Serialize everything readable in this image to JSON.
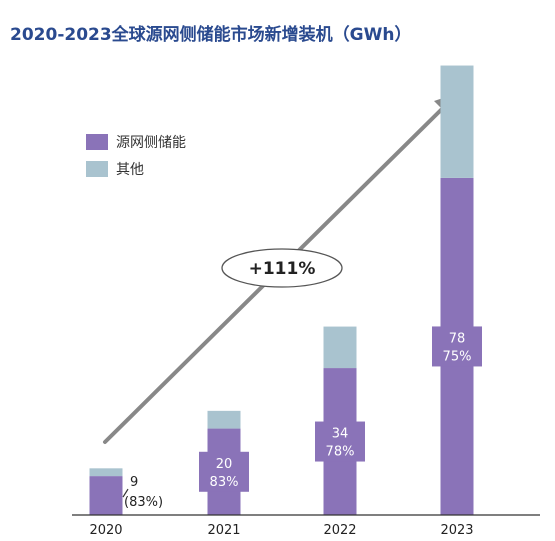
{
  "chart_data": {
    "type": "bar",
    "stacked": true,
    "title": "2020-2023全球源网侧储能市场新增装机（GWh）",
    "categories": [
      "2020",
      "2021",
      "2022",
      "2023"
    ],
    "series": [
      {
        "name": "源网侧储能",
        "values": [
          9,
          20,
          34,
          78
        ],
        "color": "#8a73b8"
      },
      {
        "name": "其他",
        "values": [
          1.8,
          4.1,
          9.6,
          26
        ],
        "color": "#a9c3cf"
      }
    ],
    "data_labels": [
      {
        "value": "9",
        "share": "(83%)"
      },
      {
        "value": "20",
        "share": "83%"
      },
      {
        "value": "34",
        "share": "78%"
      },
      {
        "value": "78",
        "share": "75%"
      }
    ],
    "growth_annotation": "+111%",
    "legend_position": "top-left",
    "ylim": [
      0,
      115
    ],
    "grid": false
  },
  "colors": {
    "title": "#2a4a8f",
    "arrow": "#888888",
    "axis": "#333333"
  }
}
